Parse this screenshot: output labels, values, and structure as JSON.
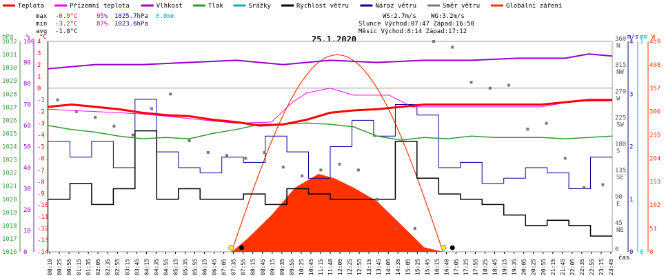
{
  "legend": [
    {
      "label": "Teplota",
      "color": "#ff0000"
    },
    {
      "label": "Přízemní teplota",
      "color": "#ff00ff"
    },
    {
      "label": "Vlhkost",
      "color": "#9900cc"
    },
    {
      "label": "Tlak",
      "color": "#339933"
    },
    {
      "label": "Srážky",
      "color": "#00aacc"
    },
    {
      "label": "Rychlost větru",
      "color": "#000000"
    },
    {
      "label": "Náraz větru",
      "color": "#000099"
    },
    {
      "label": "Směr větru",
      "color": "#777777"
    },
    {
      "label": "Globální záření",
      "color": "#ff3300"
    }
  ],
  "stats": {
    "max_label": "max",
    "max_temp": "-0.9°C",
    "max_hum": "95%",
    "max_press": "1025.7hPa",
    "rain": "0.0mm",
    "min_label": "min",
    "min_temp": "-3.2°C",
    "min_hum": "87%",
    "min_press": "1023.6hPa",
    "avg_label": "avg",
    "avg_temp": "-1.8°C"
  },
  "info": {
    "ws": "WS:2.7m/s",
    "wg": "WG:3.2m/s",
    "sun": "Slunce Východ:07:47  Západ:16:50",
    "moon": "Měsíc  Východ:8:14  Západ:17:12"
  },
  "title": "25.1.2020",
  "axes": {
    "hpa_unit": "hPa",
    "pct_unit": "%",
    "c_unit": "°C",
    "ms_unit": "m/s",
    "mm_unit": "mm",
    "w_unit": "W",
    "time_unit": "čas",
    "hpa_ticks": [
      "1016",
      "1017",
      "1018",
      "1019",
      "1020",
      "1021",
      "1022",
      "1023",
      "1024",
      "1025",
      "1026",
      "1027",
      "1028",
      "1029",
      "1030",
      "1031",
      "1032"
    ],
    "pct_ticks": [
      "0",
      "10",
      "20",
      "30",
      "40",
      "50",
      "60",
      "70",
      "80",
      "90",
      "100"
    ],
    "c_ticks": [
      "-14",
      "-13",
      "-12",
      "-11",
      "-10",
      "-9",
      "-8",
      "-7",
      "-6",
      "-5",
      "-4",
      "-3",
      "-2",
      "-1",
      "0",
      "1",
      "2",
      "3",
      "4"
    ],
    "dir_ticks": [
      {
        "v": "360",
        "l": "N"
      },
      {
        "v": "315",
        "l": "NW"
      },
      {
        "v": "270",
        "l": "W"
      },
      {
        "v": "225",
        "l": "SW"
      },
      {
        "v": "180",
        "l": "S"
      },
      {
        "v": "135",
        "l": "SE"
      },
      {
        "v": "90",
        "l": "E"
      },
      {
        "v": "45",
        "l": "NE"
      },
      {
        "v": "0",
        "l": ""
      }
    ],
    "ms_ticks": [
      "0",
      "1",
      "2",
      "3",
      "4"
    ],
    "mm_ticks": [
      "0",
      "1"
    ],
    "w_ticks": [
      "0",
      "51",
      "102",
      "153",
      "204",
      "255",
      "306",
      "357",
      "408",
      "459"
    ],
    "time_ticks": [
      "00:10",
      "00:25",
      "00:55",
      "01:15",
      "01:35",
      "02:05",
      "02:35",
      "02:55",
      "03:15",
      "03:45",
      "04:15",
      "04:35",
      "04:55",
      "05:15",
      "05:35",
      "05:55",
      "06:15",
      "06:45",
      "07:05",
      "07:35",
      "07:55",
      "08:15",
      "08:45",
      "09:15",
      "09:35",
      "09:55",
      "10:25",
      "10:45",
      "11:15",
      "11:40",
      "12:05",
      "12:25",
      "12:55",
      "13:15",
      "13:45",
      "14:05",
      "14:35",
      "15:05",
      "15:25",
      "15:45",
      "16:15",
      "16:40",
      "17:05",
      "17:25",
      "17:55",
      "18:25",
      "18:45",
      "19:15",
      "19:35",
      "20:05",
      "20:25",
      "20:55",
      "21:15",
      "21:45",
      "22:05",
      "22:35",
      "22:55",
      "23:15",
      "23:45"
    ]
  },
  "chart_data": {
    "type": "line",
    "title": "25.1.2020",
    "x_unit": "hours",
    "xlim": [
      0,
      24
    ],
    "series": [
      {
        "name": "Teplota",
        "unit": "°C",
        "color": "#ff0000",
        "points": [
          [
            0,
            -1.6
          ],
          [
            1,
            -1.4
          ],
          [
            2,
            -1.6
          ],
          [
            3,
            -1.8
          ],
          [
            4,
            -2.1
          ],
          [
            5,
            -2.3
          ],
          [
            6,
            -2.4
          ],
          [
            7,
            -2.7
          ],
          [
            8,
            -2.9
          ],
          [
            9,
            -3.2
          ],
          [
            10,
            -3.1
          ],
          [
            11,
            -2.7
          ],
          [
            12,
            -2.1
          ],
          [
            13,
            -1.9
          ],
          [
            14,
            -1.8
          ],
          [
            15,
            -1.6
          ],
          [
            16,
            -1.4
          ],
          [
            17,
            -1.4
          ],
          [
            18,
            -1.4
          ],
          [
            19,
            -1.4
          ],
          [
            20,
            -1.4
          ],
          [
            21,
            -1.4
          ],
          [
            22,
            -1.2
          ],
          [
            23,
            -1.0
          ],
          [
            24,
            -1.0
          ]
        ]
      },
      {
        "name": "Přízemní teplota",
        "unit": "°C",
        "color": "#ff00ff",
        "points": [
          [
            0,
            -1.8
          ],
          [
            4,
            -2.2
          ],
          [
            8,
            -3.0
          ],
          [
            9.5,
            -2.9
          ],
          [
            10.4,
            -1.2
          ],
          [
            11,
            -0.4
          ],
          [
            12,
            0
          ],
          [
            13,
            -0.6
          ],
          [
            14.5,
            -0.6
          ],
          [
            15.5,
            -1.6
          ],
          [
            16,
            -1.6
          ],
          [
            19,
            -1.6
          ],
          [
            20,
            -1.6
          ],
          [
            21,
            -1.6
          ],
          [
            22.4,
            -1.1
          ],
          [
            23.6,
            -1.1
          ],
          [
            24,
            -1.1
          ]
        ]
      },
      {
        "name": "Vlhkost",
        "unit": "%",
        "color": "#9900cc",
        "points": [
          [
            0,
            87
          ],
          [
            2,
            89
          ],
          [
            4,
            89
          ],
          [
            6,
            90
          ],
          [
            8,
            91
          ],
          [
            10,
            89
          ],
          [
            12,
            91
          ],
          [
            14,
            90
          ],
          [
            16,
            91
          ],
          [
            18,
            91
          ],
          [
            20,
            92
          ],
          [
            22,
            92
          ],
          [
            23,
            94
          ],
          [
            24,
            93
          ]
        ]
      },
      {
        "name": "Tlak",
        "unit": "hPa",
        "color": "#339933",
        "points": [
          [
            0,
            1025.6
          ],
          [
            1,
            1025.3
          ],
          [
            2,
            1025.1
          ],
          [
            3,
            1024.8
          ],
          [
            4,
            1024.6
          ],
          [
            5,
            1024.7
          ],
          [
            6,
            1024.6
          ],
          [
            7,
            1025.0
          ],
          [
            8,
            1025.3
          ],
          [
            9,
            1025.7
          ],
          [
            10,
            1025.7
          ],
          [
            11,
            1025.8
          ],
          [
            12,
            1025.7
          ],
          [
            13,
            1025.5
          ],
          [
            14,
            1024.8
          ],
          [
            15,
            1024.5
          ],
          [
            16,
            1024.7
          ],
          [
            17,
            1024.6
          ],
          [
            18,
            1024.8
          ],
          [
            19,
            1024.7
          ],
          [
            20,
            1024.7
          ],
          [
            21,
            1024.7
          ],
          [
            22,
            1024.6
          ],
          [
            23,
            1024.7
          ],
          [
            24,
            1024.8
          ]
        ]
      },
      {
        "name": "Globální záření",
        "unit": "W/m²",
        "color": "#ff3300",
        "points": [
          [
            7.8,
            0
          ],
          [
            8.5,
            30
          ],
          [
            9.5,
            80
          ],
          [
            10.5,
            140
          ],
          [
            11.5,
            170
          ],
          [
            12.2,
            160
          ],
          [
            13,
            140
          ],
          [
            14,
            110
          ],
          [
            15,
            60
          ],
          [
            16,
            10
          ],
          [
            16.8,
            0
          ]
        ],
        "clear_sky_peak": 430
      }
    ],
    "wind_speed_ms": [
      1.0,
      1.3,
      0.9,
      1.2,
      2.3,
      1.0,
      1.2,
      1.0,
      1.0,
      1.1,
      0.9,
      1.2,
      1.1,
      1.0,
      1.0,
      1.0,
      2.1,
      1.4,
      1.1,
      1.0,
      0.9,
      0.7,
      0.5,
      0.6,
      0.5,
      0.3
    ],
    "wind_gust_ms": [
      2.1,
      1.8,
      2.1,
      1.6,
      2.9,
      1.9,
      1.6,
      1.5,
      1.8,
      1.7,
      2.2,
      1.9,
      1.4,
      2.0,
      2.5,
      2.2,
      2.8,
      2.6,
      1.6,
      1.7,
      1.3,
      1.4,
      1.6,
      1.5,
      1.2,
      1.8
    ],
    "wind_direction_deg": [
      260,
      240,
      230,
      215,
      200,
      245,
      270,
      190,
      170,
      165,
      160,
      170,
      145,
      130,
      140,
      150,
      140,
      90,
      40,
      40,
      370,
      350,
      290,
      280,
      285,
      210,
      220,
      160,
      110,
      115
    ],
    "ylim": {
      "temp": [
        -14,
        4
      ],
      "humidity": [
        0,
        100
      ],
      "pressure": [
        1016,
        1032
      ],
      "wind": [
        0,
        4
      ],
      "direction": [
        0,
        360
      ],
      "radiation": [
        0,
        459
      ]
    }
  }
}
